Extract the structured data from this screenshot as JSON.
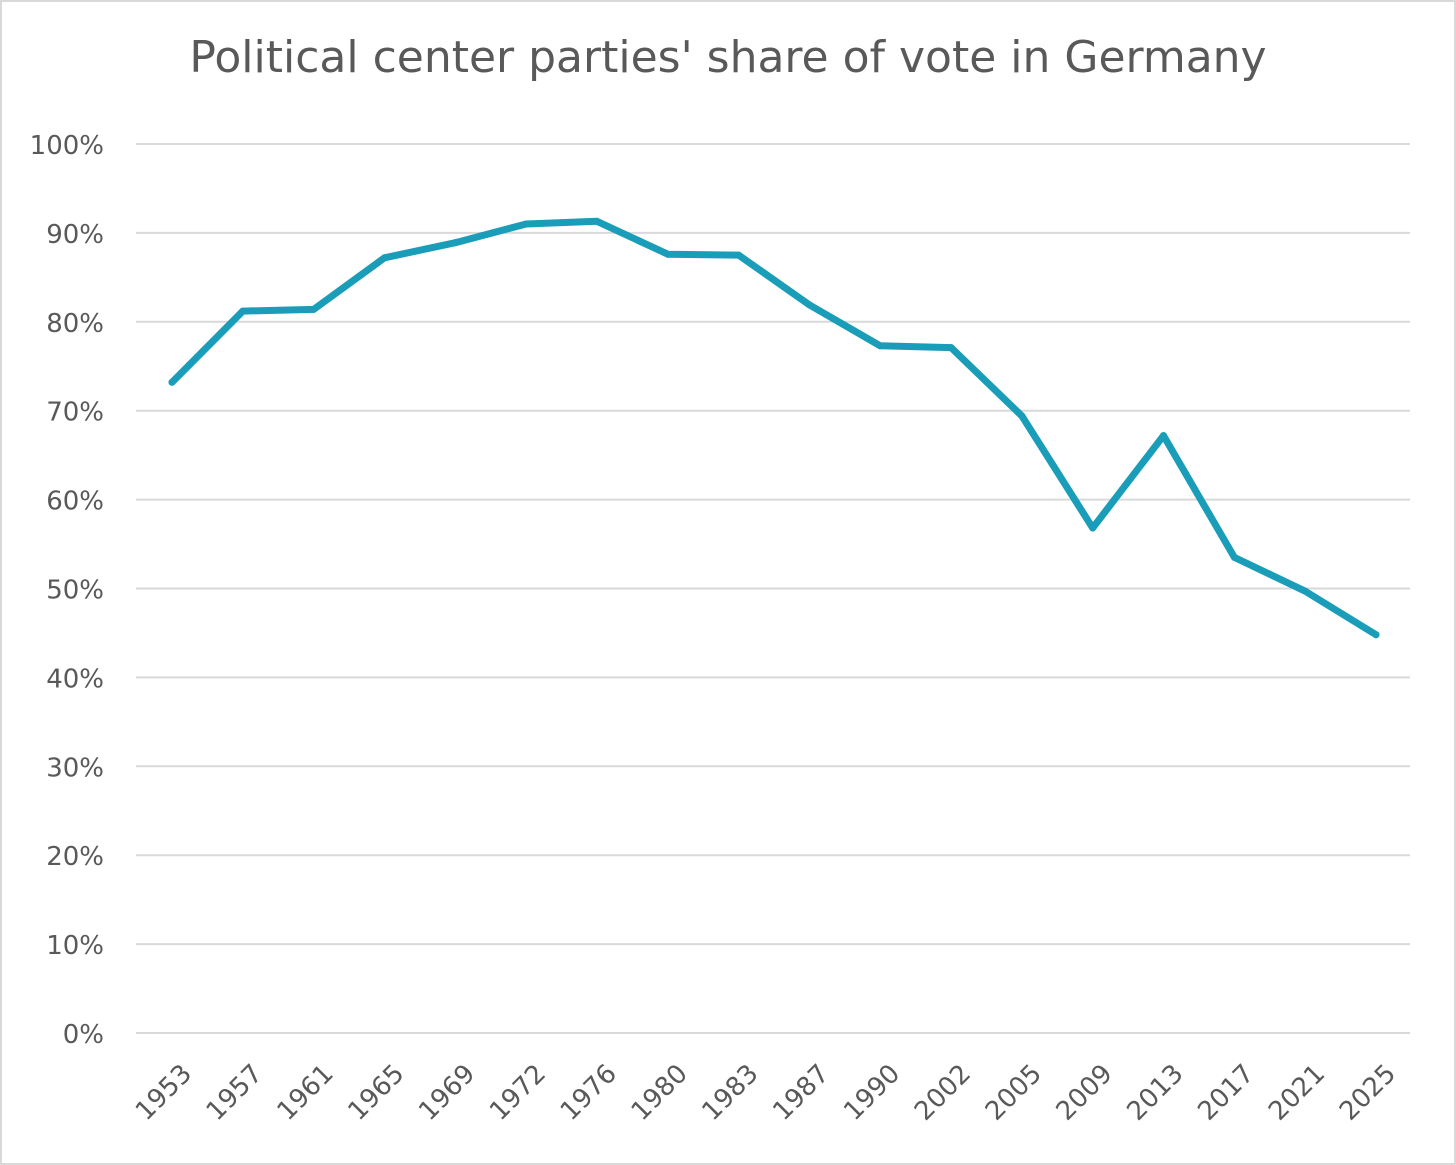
{
  "chart_data": {
    "type": "line",
    "title": "Political center parties' share of vote in Germany",
    "xlabel": "",
    "ylabel": "",
    "categories": [
      "1953",
      "1957",
      "1961",
      "1965",
      "1969",
      "1972",
      "1976",
      "1980",
      "1983",
      "1987",
      "1990",
      "2002",
      "2005",
      "2009",
      "2013",
      "2017",
      "2021",
      "2025"
    ],
    "series": [
      {
        "values": [
          73.2,
          81.2,
          81.4,
          87.2,
          88.9,
          91.0,
          91.3,
          87.6,
          87.5,
          81.9,
          77.3,
          77.1,
          69.4,
          56.8,
          67.2,
          53.5,
          49.7,
          44.8
        ],
        "color": "#1a9db8"
      }
    ],
    "yticks": [
      "0%",
      "10%",
      "20%",
      "30%",
      "40%",
      "50%",
      "60%",
      "70%",
      "80%",
      "90%",
      "100%"
    ],
    "ylim": [
      0,
      100
    ],
    "grid": true,
    "legend": "none",
    "colors": {
      "line": "#1a9db8",
      "grid": "#d9d9d9",
      "text": "#595959"
    }
  }
}
